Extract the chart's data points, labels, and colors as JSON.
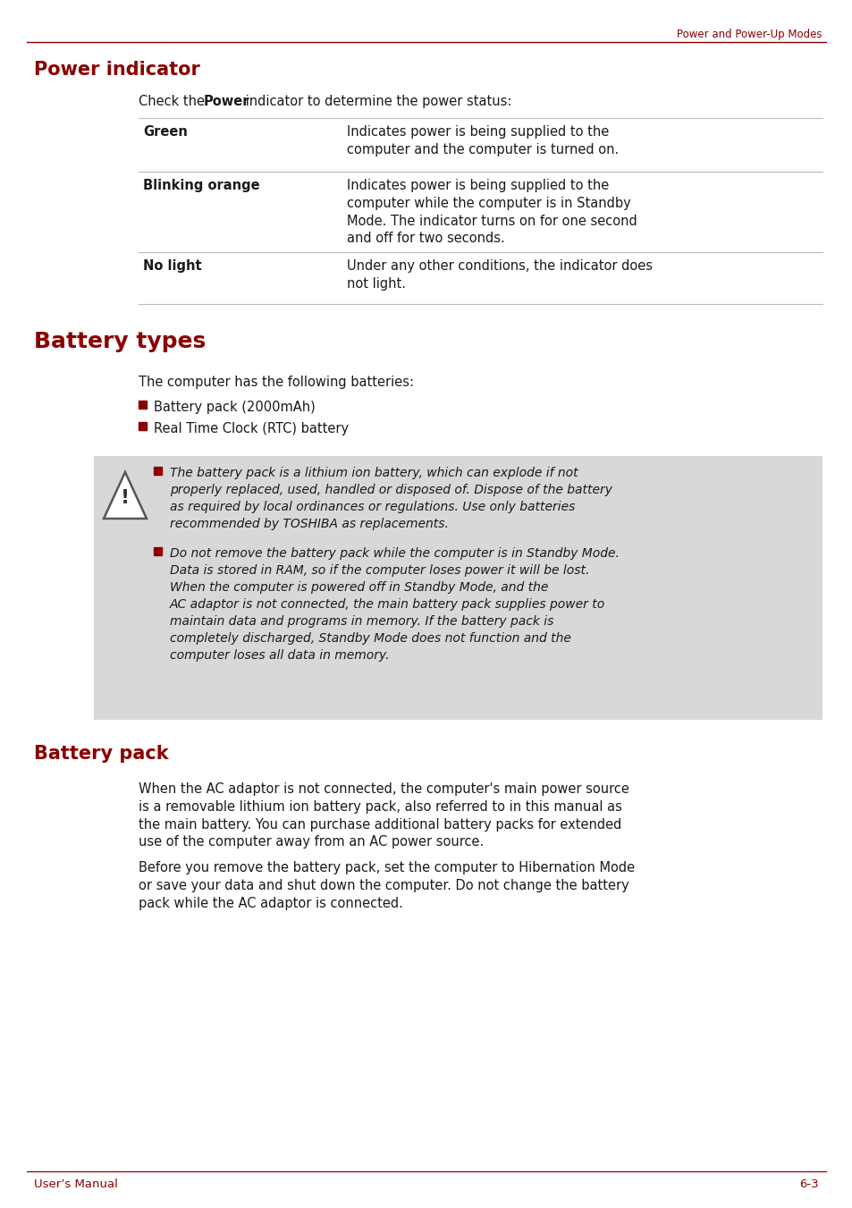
{
  "page_title": "Power and Power-Up Modes",
  "header_color": "#8B0000",
  "text_color": "#1a1a1a",
  "bg_color": "#ffffff",
  "footer_left": "User’s Manual",
  "footer_right": "6-3",
  "gray_line": "#bbbbbb",
  "warn_bg": "#d8d8d8",
  "section1_title": "Power indicator",
  "table_rows": [
    {
      "label": "Green",
      "text": "Indicates power is being supplied to the\ncomputer and the computer is turned on."
    },
    {
      "label": "Blinking orange",
      "text": "Indicates power is being supplied to the\ncomputer while the computer is in Standby\nMode. The indicator turns on for one second\nand off for two seconds."
    },
    {
      "label": "No light",
      "text": "Under any other conditions, the indicator does\nnot light."
    }
  ],
  "section2_title": "Battery types",
  "section2_intro": "The computer has the following batteries:",
  "bullet_items": [
    "Battery pack (2000mAh)",
    "Real Time Clock (RTC) battery"
  ],
  "warning_box_items": [
    "The battery pack is a lithium ion battery, which can explode if not\nproperly replaced, used, handled or disposed of. Dispose of the battery\nas required by local ordinances or regulations. Use only batteries\nrecommended by TOSHIBA as replacements.",
    "Do not remove the battery pack while the computer is in Standby Mode.\nData is stored in RAM, so if the computer loses power it will be lost.\nWhen the computer is powered off in Standby Mode, and the\nAC adaptor is not connected, the main battery pack supplies power to\nmaintain data and programs in memory. If the battery pack is\ncompletely discharged, Standby Mode does not function and the\ncomputer loses all data in memory."
  ],
  "section3_title": "Battery pack",
  "section3_para1": "When the AC adaptor is not connected, the computer's main power source\nis a removable lithium ion battery pack, also referred to in this manual as\nthe main battery. You can purchase additional battery packs for extended\nuse of the computer away from an AC power source.",
  "section3_para2": "Before you remove the battery pack, set the computer to Hibernation Mode\nor save your data and shut down the computer. Do not change the battery\npack while the AC adaptor is connected."
}
